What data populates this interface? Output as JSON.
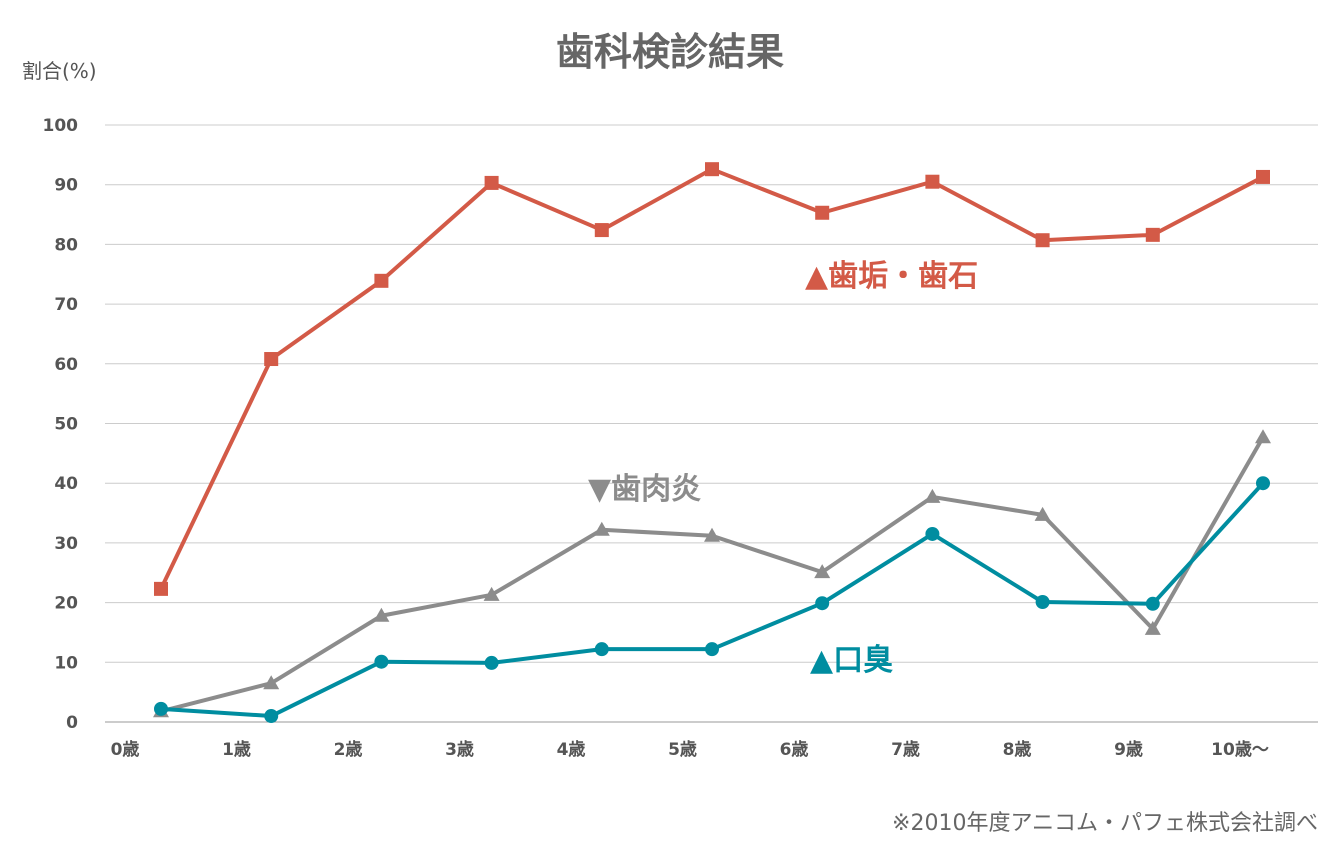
{
  "chart_data": {
    "type": "line",
    "title": "歯科検診結果",
    "ylabel": "割合(%)",
    "xlabel": "",
    "ylim": [
      0,
      100
    ],
    "yticks": [
      0,
      10,
      20,
      30,
      40,
      50,
      60,
      70,
      80,
      90,
      100
    ],
    "grid": true,
    "categories": [
      "0歳",
      "1歳",
      "2歳",
      "3歳",
      "4歳",
      "5歳",
      "6歳",
      "7歳",
      "8歳",
      "9歳",
      "10歳～"
    ],
    "series": [
      {
        "name": "▲歯垢・歯石",
        "color": "#d35a47",
        "marker": "square",
        "values": [
          22.3,
          60.8,
          73.9,
          90.3,
          82.4,
          92.6,
          85.3,
          90.5,
          80.7,
          81.6,
          91.3
        ]
      },
      {
        "name": "▼歯肉炎",
        "color": "#8c8c8c",
        "marker": "triangle",
        "values": [
          1.8,
          6.5,
          17.8,
          21.3,
          32.2,
          31.2,
          25.1,
          37.7,
          34.7,
          15.6,
          47.7
        ]
      },
      {
        "name": "▲口臭",
        "color": "#008da0",
        "marker": "circle",
        "values": [
          2.2,
          1.0,
          10.1,
          9.9,
          12.2,
          12.2,
          19.9,
          31.5,
          20.1,
          19.8,
          40.0
        ]
      }
    ],
    "note": "※2010年度アニコム・パフェ株式会社調べ"
  }
}
